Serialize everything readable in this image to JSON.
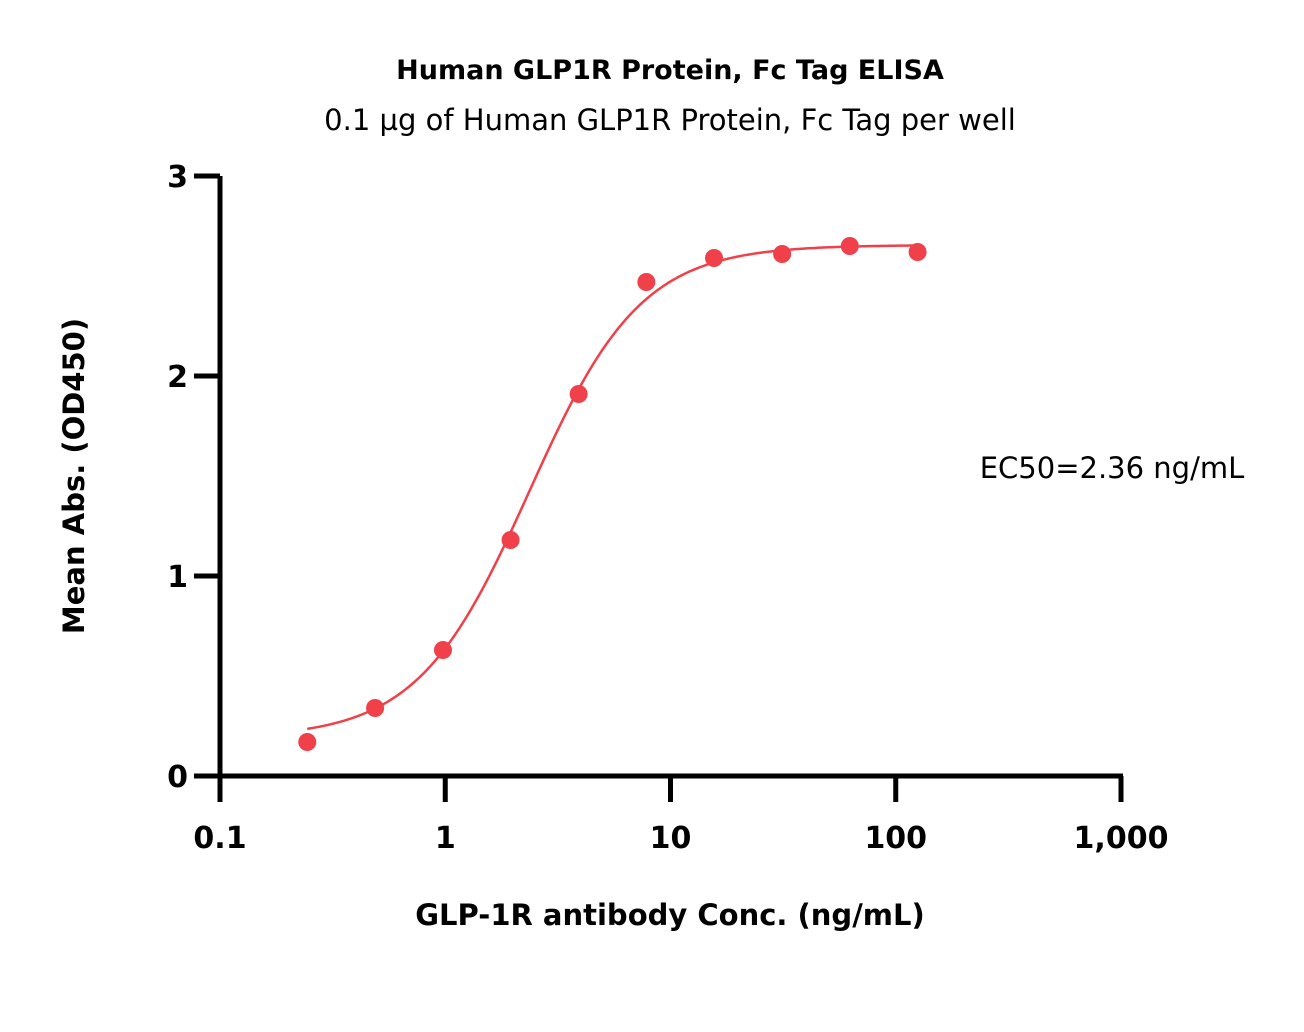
{
  "chart_data": {
    "type": "scatter",
    "title": "Human GLP1R Protein, Fc Tag ELISA",
    "subtitle": "0.1 µg of Human GLP1R Protein, Fc Tag per well",
    "xlabel": "GLP-1R antibody Conc. (ng/mL)",
    "ylabel": "Mean Abs. (OD450)",
    "x_scale": "log",
    "xlim": [
      0.1,
      1000
    ],
    "ylim": [
      0,
      3
    ],
    "x_ticks": [
      0.1,
      1,
      10,
      100,
      1000
    ],
    "x_tick_labels": [
      "0.1",
      "1",
      "10",
      "100",
      "1,000"
    ],
    "y_ticks": [
      0,
      1,
      2,
      3
    ],
    "y_tick_labels": [
      "0",
      "1",
      "2",
      "3"
    ],
    "grid": false,
    "color": "#f0404a",
    "series": [
      {
        "x": [
          0.244,
          0.488,
          0.977,
          1.95,
          3.91,
          7.81,
          15.6,
          31.3,
          62.5,
          125
        ],
        "y": [
          0.17,
          0.34,
          0.63,
          1.18,
          1.91,
          2.47,
          2.59,
          2.61,
          2.65,
          2.62
        ]
      }
    ],
    "annotations": [
      "EC50=2.36 ng/mL"
    ]
  }
}
